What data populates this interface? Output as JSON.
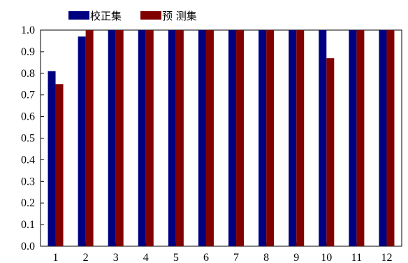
{
  "chart_data": {
    "type": "bar",
    "categories": [
      "1",
      "2",
      "3",
      "4",
      "5",
      "6",
      "7",
      "8",
      "9",
      "10",
      "11",
      "12"
    ],
    "series": [
      {
        "name": "校正集",
        "color": "#000080",
        "values": [
          0.81,
          0.97,
          1.0,
          1.0,
          1.0,
          1.0,
          1.0,
          1.0,
          1.0,
          1.0,
          1.0,
          1.0
        ]
      },
      {
        "name": "预 测集",
        "color": "#800000",
        "values": [
          0.75,
          1.0,
          1.0,
          1.0,
          1.0,
          1.0,
          1.0,
          1.0,
          1.0,
          0.87,
          1.0,
          1.0
        ]
      }
    ],
    "title": "",
    "xlabel": "",
    "ylabel": "",
    "ylim": [
      0,
      1.0
    ],
    "yticks": [
      "0.0",
      "0.1",
      "0.2",
      "0.3",
      "0.4",
      "0.5",
      "0.6",
      "0.7",
      "0.8",
      "0.9",
      "1.0"
    ],
    "grid": false,
    "legend_position": "top-left"
  }
}
